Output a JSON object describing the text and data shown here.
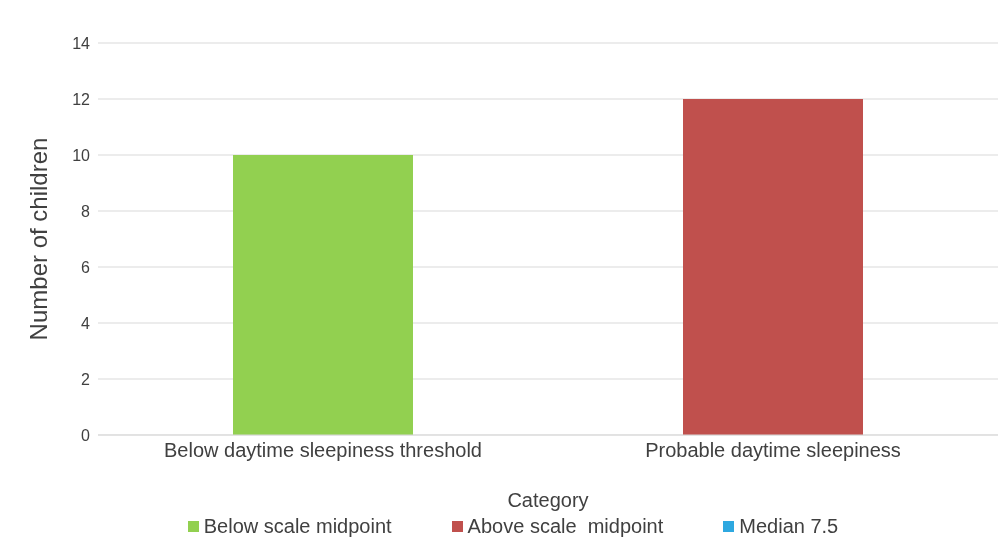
{
  "chart_data": {
    "type": "bar",
    "xlabel": "Category",
    "ylabel": "Number of children",
    "categories": [
      "Below daytime sleepiness threshold",
      "Probable daytime sleepiness"
    ],
    "series": [
      {
        "name": "Below scale midpoint",
        "color": "#92d050",
        "values": [
          10,
          null
        ]
      },
      {
        "name": "Above scale  midpoint",
        "color": "#c0504d",
        "values": [
          null,
          12
        ]
      },
      {
        "name": "Median 7.5",
        "color": "#2ea8e0",
        "values": [
          null,
          null
        ]
      }
    ],
    "ylim": [
      0,
      14
    ],
    "yticks": [
      0,
      2,
      4,
      6,
      8,
      10,
      12,
      14
    ],
    "grid": "y",
    "legend": "bottom"
  }
}
